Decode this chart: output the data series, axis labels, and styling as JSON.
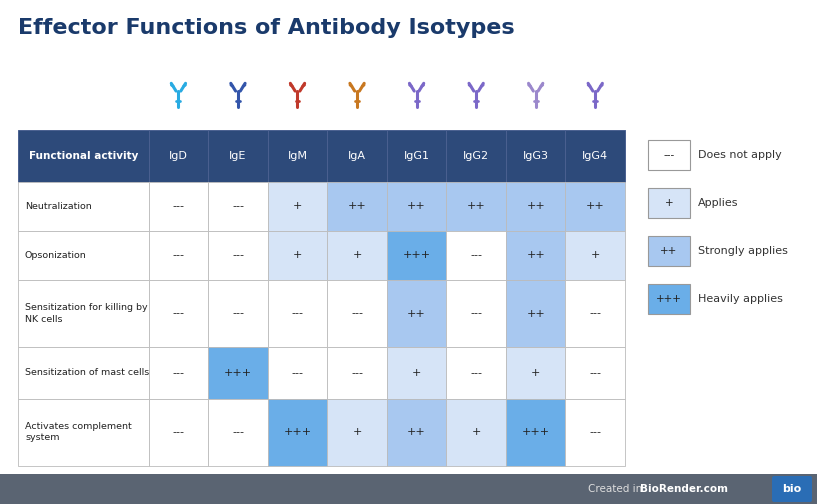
{
  "title": "Effector Functions of Antibody Isotypes",
  "title_color": "#1a3a6b",
  "background_color": "#ffffff",
  "header_bg": "#2d4a7a",
  "header_text_color": "#ffffff",
  "columns": [
    "Functional activity",
    "IgD",
    "IgE",
    "IgM",
    "IgA",
    "IgG1",
    "IgG2",
    "IgG3",
    "IgG4"
  ],
  "rows": [
    "Neutralization",
    "Opsonization",
    "Sensitization for killing by\nNK cells",
    "Sensitization of mast cells",
    "Activates complement\nsystem"
  ],
  "table_data": [
    [
      "---",
      "---",
      "+",
      "++",
      "++",
      "++",
      "++",
      "++"
    ],
    [
      "---",
      "---",
      "+",
      "+",
      "+++",
      "---",
      "++",
      "+"
    ],
    [
      "---",
      "---",
      "---",
      "---",
      "++",
      "---",
      "++",
      "---"
    ],
    [
      "---",
      "+++",
      "---",
      "---",
      "+",
      "---",
      "+",
      "---"
    ],
    [
      "---",
      "---",
      "+++",
      "+",
      "++",
      "+",
      "+++",
      "---"
    ]
  ],
  "cell_colors": [
    [
      "none",
      "none",
      "light",
      "medium",
      "medium",
      "medium",
      "medium",
      "medium"
    ],
    [
      "none",
      "none",
      "light",
      "light",
      "dark",
      "none",
      "medium",
      "light"
    ],
    [
      "none",
      "none",
      "none",
      "none",
      "medium",
      "none",
      "medium",
      "none"
    ],
    [
      "none",
      "dark",
      "none",
      "none",
      "light",
      "none",
      "light",
      "none"
    ],
    [
      "none",
      "none",
      "dark",
      "light",
      "medium",
      "light",
      "dark",
      "none"
    ]
  ],
  "color_none": "#ffffff",
  "color_light": "#d6e4f7",
  "color_medium": "#a8c8f0",
  "color_dark": "#6aaee8",
  "legend_items": [
    {
      "symbol": "---",
      "label": "Does not apply",
      "color": "#ffffff"
    },
    {
      "symbol": "+",
      "label": "Applies",
      "color": "#d6e4f7"
    },
    {
      "symbol": "++",
      "label": "Strongly applies",
      "color": "#a8c8f0"
    },
    {
      "symbol": "+++",
      "label": "Heavily applies",
      "color": "#6aaee8"
    }
  ],
  "antibody_colors": [
    "#29abe2",
    "#3355aa",
    "#c0392b",
    "#c87820",
    "#7b68c8",
    "#7b68c8",
    "#9b88cc",
    "#7b68c8"
  ],
  "footer_bg": "#5a6472",
  "footer_text": "Created in ",
  "footer_brand": "BioRender.com",
  "footer_badge": "bio",
  "footer_badge_color": "#2a6db5"
}
